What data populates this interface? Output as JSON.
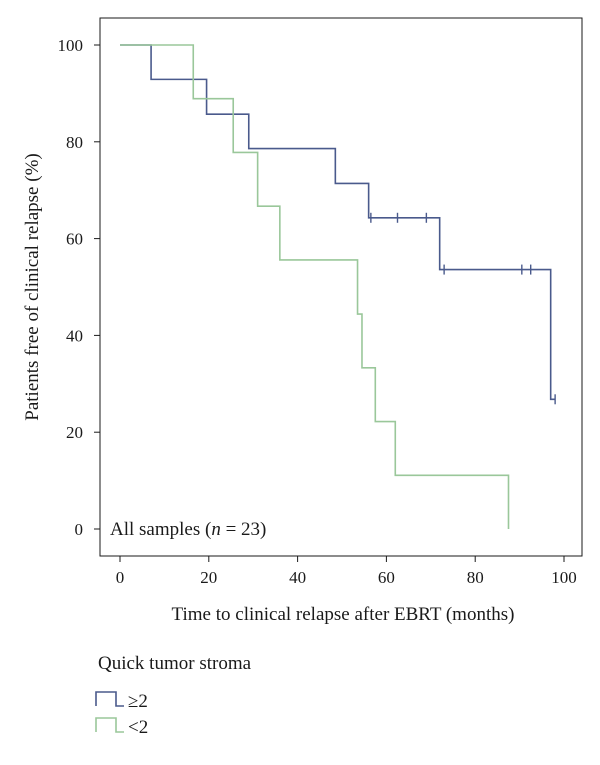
{
  "chart_data": {
    "type": "line",
    "step": true,
    "xlabel": "Time to clinical relapse after EBRT (months)",
    "ylabel": "Patients free of clinical relapse (%)",
    "xlim": [
      0,
      100
    ],
    "ylim": [
      0,
      100
    ],
    "x_ticks": [
      0,
      20,
      40,
      60,
      80,
      100
    ],
    "y_ticks": [
      0,
      20,
      40,
      60,
      80,
      100
    ],
    "grid": false,
    "annotation": {
      "prefix": "All samples (",
      "n_symbol": "n",
      "suffix": " = 23)"
    },
    "legend": {
      "title": "Quick tumor stroma",
      "placement": "bottom-left"
    },
    "series": [
      {
        "name": "≥2",
        "color": "#4a5a8c",
        "steps": [
          [
            0,
            100
          ],
          [
            7,
            92.9
          ],
          [
            19.5,
            85.7
          ],
          [
            29,
            78.6
          ],
          [
            48.5,
            71.4
          ],
          [
            56,
            64.3
          ],
          [
            72,
            53.6
          ],
          [
            97,
            26.8
          ],
          [
            98,
            26.8
          ]
        ],
        "censored": [
          [
            56.5,
            64.3
          ],
          [
            62.5,
            64.3
          ],
          [
            69,
            64.3
          ],
          [
            73,
            53.6
          ],
          [
            90.5,
            53.6
          ],
          [
            92.5,
            53.6
          ],
          [
            98,
            26.8
          ]
        ]
      },
      {
        "name": "<2",
        "color": "#9ac79a",
        "steps": [
          [
            0,
            100
          ],
          [
            16.5,
            88.9
          ],
          [
            25.5,
            77.8
          ],
          [
            31,
            66.7
          ],
          [
            36,
            55.6
          ],
          [
            53.5,
            44.4
          ],
          [
            54.5,
            33.3
          ],
          [
            57.5,
            22.2
          ],
          [
            62,
            11.1
          ],
          [
            87.5,
            0
          ]
        ],
        "censored": []
      }
    ]
  }
}
